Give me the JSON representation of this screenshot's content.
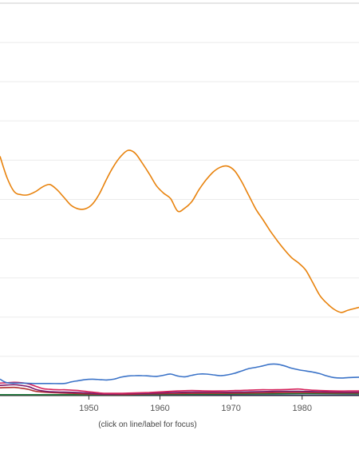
{
  "chart_data": {
    "type": "line",
    "xlim": [
      1937.5,
      1988
    ],
    "ylim": [
      0,
      100
    ],
    "grid": true,
    "x_ticks": [
      1950,
      1960,
      1970,
      1980
    ],
    "x_tick_labels": [
      "1950",
      "1960",
      "1970",
      "1980"
    ],
    "series": [
      {
        "color": "#e8820c",
        "points": [
          [
            1937.5,
            61
          ],
          [
            1938.5,
            55.5
          ],
          [
            1939.5,
            52
          ],
          [
            1940.5,
            51.2
          ],
          [
            1941.5,
            51.2
          ],
          [
            1942.5,
            52
          ],
          [
            1943.5,
            53.2
          ],
          [
            1944.5,
            53.8
          ],
          [
            1945.5,
            52.5
          ],
          [
            1946.5,
            50.5
          ],
          [
            1947.5,
            48.5
          ],
          [
            1948.5,
            47.6
          ],
          [
            1949.5,
            47.6
          ],
          [
            1950.5,
            48.8
          ],
          [
            1951.5,
            51.5
          ],
          [
            1952.5,
            55.2
          ],
          [
            1953.5,
            58.5
          ],
          [
            1954.5,
            61
          ],
          [
            1955.5,
            62.5
          ],
          [
            1956.5,
            61.8
          ],
          [
            1957.5,
            59.3
          ],
          [
            1958.5,
            56.5
          ],
          [
            1959.5,
            53.5
          ],
          [
            1960.5,
            51.6
          ],
          [
            1961.5,
            50.2
          ],
          [
            1962.5,
            47
          ],
          [
            1963.5,
            47.8
          ],
          [
            1964.5,
            49.5
          ],
          [
            1965.5,
            52.5
          ],
          [
            1966.5,
            55
          ],
          [
            1967.5,
            57
          ],
          [
            1968.5,
            58.2
          ],
          [
            1969.5,
            58.5
          ],
          [
            1970.5,
            57.3
          ],
          [
            1971.5,
            54.5
          ],
          [
            1972.5,
            51
          ],
          [
            1973.5,
            47.5
          ],
          [
            1974.5,
            44.8
          ],
          [
            1975.5,
            42
          ],
          [
            1976.5,
            39.5
          ],
          [
            1977.5,
            37.2
          ],
          [
            1978.5,
            35.2
          ],
          [
            1979.5,
            33.8
          ],
          [
            1980.5,
            32
          ],
          [
            1981.5,
            28.8
          ],
          [
            1982.5,
            25.5
          ],
          [
            1983.5,
            23.5
          ],
          [
            1984.5,
            22
          ],
          [
            1985.5,
            21.2
          ],
          [
            1986.5,
            21.8
          ],
          [
            1988,
            22.5
          ]
        ]
      },
      {
        "color": "#3b73c8",
        "points": [
          [
            1937.5,
            4.2
          ],
          [
            1938.5,
            3.3
          ],
          [
            1940.5,
            3.2
          ],
          [
            1942.5,
            3.1
          ],
          [
            1944.5,
            3.1
          ],
          [
            1946.5,
            3.1
          ],
          [
            1947.5,
            3.5
          ],
          [
            1948.5,
            3.8
          ],
          [
            1949.5,
            4.1
          ],
          [
            1950.5,
            4.2
          ],
          [
            1951.5,
            4.1
          ],
          [
            1952.5,
            4
          ],
          [
            1953.5,
            4.2
          ],
          [
            1954.5,
            4.7
          ],
          [
            1955.5,
            5
          ],
          [
            1956.5,
            5.1
          ],
          [
            1957.5,
            5.1
          ],
          [
            1958.5,
            5
          ],
          [
            1959.5,
            4.9
          ],
          [
            1960.5,
            5.2
          ],
          [
            1961.5,
            5.5
          ],
          [
            1962.5,
            5
          ],
          [
            1963.5,
            4.8
          ],
          [
            1964.5,
            5.2
          ],
          [
            1965.5,
            5.5
          ],
          [
            1966.5,
            5.5
          ],
          [
            1967.5,
            5.3
          ],
          [
            1968.5,
            5.1
          ],
          [
            1969.5,
            5.3
          ],
          [
            1970.5,
            5.7
          ],
          [
            1971.5,
            6.3
          ],
          [
            1972.5,
            6.9
          ],
          [
            1973.5,
            7.2
          ],
          [
            1974.5,
            7.6
          ],
          [
            1975.5,
            8
          ],
          [
            1976.5,
            8
          ],
          [
            1977.5,
            7.6
          ],
          [
            1978.5,
            7
          ],
          [
            1979.5,
            6.6
          ],
          [
            1980.5,
            6.3
          ],
          [
            1981.5,
            6
          ],
          [
            1982.5,
            5.6
          ],
          [
            1983.5,
            5
          ],
          [
            1984.5,
            4.6
          ],
          [
            1985.5,
            4.5
          ],
          [
            1986.5,
            4.6
          ],
          [
            1988,
            4.7
          ]
        ]
      },
      {
        "color": "#d6245c",
        "points": [
          [
            1937.5,
            3.2
          ],
          [
            1938.5,
            3.3
          ],
          [
            1939.5,
            3.4
          ],
          [
            1940.5,
            3.3
          ],
          [
            1941.5,
            3
          ],
          [
            1942.5,
            2.4
          ],
          [
            1943.5,
            1.8
          ],
          [
            1944.5,
            1.6
          ],
          [
            1945.5,
            1.5
          ],
          [
            1946.5,
            1.5
          ],
          [
            1947.5,
            1.4
          ],
          [
            1948.5,
            1.3
          ],
          [
            1949.5,
            1.1
          ],
          [
            1950.5,
            0.9
          ],
          [
            1951.5,
            0.7
          ],
          [
            1952.5,
            0.6
          ],
          [
            1954.5,
            0.6
          ],
          [
            1956.5,
            0.7
          ],
          [
            1958.5,
            0.8
          ],
          [
            1960.5,
            1
          ],
          [
            1962.5,
            1.2
          ],
          [
            1964.5,
            1.3
          ],
          [
            1966.5,
            1.2
          ],
          [
            1968.5,
            1.2
          ],
          [
            1970.5,
            1.3
          ],
          [
            1972.5,
            1.4
          ],
          [
            1974.5,
            1.5
          ],
          [
            1976.5,
            1.5
          ],
          [
            1978.5,
            1.6
          ],
          [
            1979.5,
            1.7
          ],
          [
            1980.5,
            1.5
          ],
          [
            1982.5,
            1.3
          ],
          [
            1984.5,
            1.2
          ],
          [
            1986.5,
            1.2
          ],
          [
            1988,
            1.2
          ]
        ]
      },
      {
        "color": "#7b1c6e",
        "points": [
          [
            1937.5,
            2.6
          ],
          [
            1938.5,
            2.7
          ],
          [
            1939.5,
            2.8
          ],
          [
            1940.5,
            2.6
          ],
          [
            1941.5,
            2.3
          ],
          [
            1942.5,
            1.6
          ],
          [
            1943.5,
            1.2
          ],
          [
            1944.5,
            1
          ],
          [
            1946.5,
            0.9
          ],
          [
            1948.5,
            0.8
          ],
          [
            1950.5,
            0.6
          ],
          [
            1952.5,
            0.4
          ],
          [
            1955.5,
            0.5
          ],
          [
            1958.5,
            0.6
          ],
          [
            1961.5,
            0.8
          ],
          [
            1964.5,
            0.9
          ],
          [
            1967.5,
            0.9
          ],
          [
            1970.5,
            0.9
          ],
          [
            1973.5,
            1
          ],
          [
            1976.5,
            1.1
          ],
          [
            1979.5,
            1.1
          ],
          [
            1982.5,
            1
          ],
          [
            1985.5,
            0.9
          ],
          [
            1988,
            0.9
          ]
        ]
      },
      {
        "color": "#b03030",
        "points": [
          [
            1937.5,
            2
          ],
          [
            1939.5,
            2.1
          ],
          [
            1940.5,
            1.9
          ],
          [
            1941.5,
            1.6
          ],
          [
            1942.5,
            1.1
          ],
          [
            1944.5,
            0.8
          ],
          [
            1947.5,
            0.6
          ],
          [
            1950.5,
            0.4
          ],
          [
            1953.5,
            0.3
          ],
          [
            1957.5,
            0.4
          ],
          [
            1961.5,
            0.5
          ],
          [
            1965.5,
            0.6
          ],
          [
            1969.5,
            0.6
          ],
          [
            1973.5,
            0.7
          ],
          [
            1977.5,
            0.8
          ],
          [
            1980.5,
            0.8
          ],
          [
            1984.5,
            0.7
          ],
          [
            1988,
            0.7
          ]
        ]
      },
      {
        "color": "#1b7a3a",
        "points": [
          [
            1937.5,
            0.25
          ],
          [
            1945.5,
            0.25
          ],
          [
            1955.5,
            0.3
          ],
          [
            1965.5,
            0.35
          ],
          [
            1975.5,
            0.45
          ],
          [
            1980.5,
            0.5
          ],
          [
            1988,
            0.45
          ]
        ]
      },
      {
        "color": "#16166e",
        "points": [
          [
            1937.5,
            0.1
          ],
          [
            1988,
            0.1
          ]
        ]
      }
    ]
  },
  "caption": "(click on line/label for focus)"
}
